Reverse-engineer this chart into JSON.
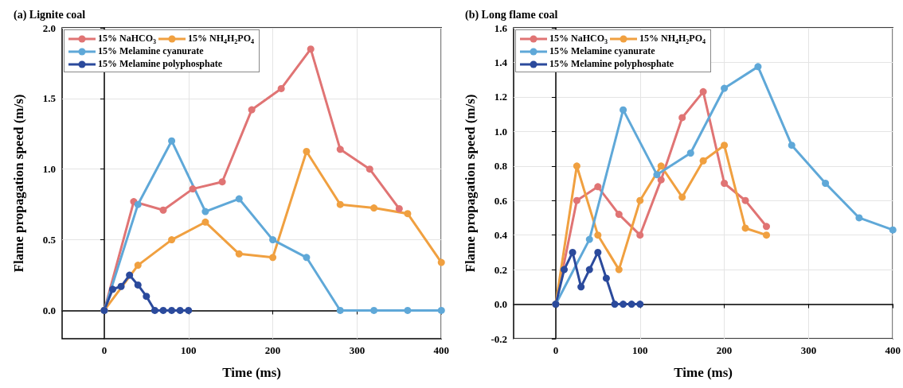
{
  "chart_data": [
    {
      "type": "line",
      "title": "(a) Lignite coal",
      "xlabel": "Time (ms)",
      "ylabel": "Flame propagation speed (m/s)",
      "xlim": [
        -50,
        400
      ],
      "xticks": [
        0,
        100,
        200,
        300,
        400
      ],
      "ylim": [
        -0.2,
        2.0
      ],
      "yticks": [
        {
          "value": 0,
          "label": "0.0"
        },
        0.5,
        {
          "value": 1,
          "label": "1.0"
        },
        1.5,
        {
          "value": 2,
          "label": "2.0"
        }
      ],
      "grid": true,
      "legend": "top left",
      "marker": "circle",
      "line_style": "solid",
      "series": [
        {
          "name": "15% NaHCO$_{3}$",
          "color": "#e07474",
          "x": [
            0,
            35,
            70,
            105,
            140,
            175,
            210,
            245,
            280,
            315,
            350
          ],
          "values": [
            0,
            0.77,
            0.71,
            0.86,
            0.91,
            1.42,
            1.57,
            1.85,
            1.14,
            1.0,
            0.72
          ]
        },
        {
          "name": "15% NH$_{4}$H$_{2}$PO$_{4}$",
          "color": "#f0a040",
          "x": [
            0,
            40,
            80,
            120,
            160,
            200,
            240,
            280,
            320,
            360,
            400
          ],
          "values": [
            0,
            0.32,
            0.5,
            0.625,
            0.4,
            0.375,
            1.125,
            0.75,
            0.725,
            0.685,
            0.34
          ]
        },
        {
          "name": "15% Melamine cyanurate",
          "color": "#5fa8d8",
          "x": [
            0,
            40,
            80,
            120,
            160,
            200,
            240,
            280,
            320,
            360,
            400
          ],
          "values": [
            0,
            0.75,
            1.2,
            0.7,
            0.79,
            0.5,
            0.375,
            0,
            0,
            0,
            0
          ]
        },
        {
          "name": "15% Melamine polyphosphate",
          "color": "#2b4a9c",
          "x": [
            0,
            10,
            20,
            30,
            40,
            50,
            60,
            70,
            80,
            90,
            100
          ],
          "values": [
            0,
            0.15,
            0.17,
            0.25,
            0.18,
            0.1,
            0,
            0,
            0,
            0,
            0
          ]
        }
      ]
    },
    {
      "type": "line",
      "title": "(b) Long flame coal",
      "xlabel": "Time (ms)",
      "ylabel": "Flame propagation speed (m/s)",
      "xlim": [
        -50,
        400
      ],
      "xticks": [
        0,
        100,
        200,
        300,
        400
      ],
      "ylim": [
        -0.2,
        1.6
      ],
      "yticks": [
        -0.2,
        {
          "value": 0,
          "label": "0.0"
        },
        0.2,
        0.4,
        0.6,
        0.8,
        {
          "value": 1,
          "label": "1.0"
        },
        1.2,
        1.4,
        1.6
      ],
      "grid": true,
      "legend": "top left",
      "marker": "circle",
      "line_style": "solid",
      "series": [
        {
          "name": "15% NaHCO$_{3}$",
          "color": "#e07474",
          "x": [
            0,
            25,
            50,
            75,
            100,
            125,
            150,
            175,
            200,
            225,
            250
          ],
          "values": [
            0,
            0.6,
            0.68,
            0.52,
            0.4,
            0.72,
            1.08,
            1.23,
            0.7,
            0.6,
            0.45
          ]
        },
        {
          "name": "15% NH$_{4}$H$_{2}$PO$_{4}$",
          "color": "#f0a040",
          "x": [
            0,
            25,
            50,
            75,
            100,
            125,
            150,
            175,
            200,
            225,
            250
          ],
          "values": [
            0,
            0.8,
            0.4,
            0.2,
            0.6,
            0.8,
            0.62,
            0.83,
            0.92,
            0.44,
            0.4
          ]
        },
        {
          "name": "15% Melamine cyanurate",
          "color": "#5fa8d8",
          "x": [
            0,
            40,
            80,
            120,
            160,
            200,
            240,
            280,
            320,
            360,
            400
          ],
          "values": [
            0,
            0.375,
            1.125,
            0.75,
            0.875,
            1.25,
            1.375,
            0.92,
            0.7,
            0.5,
            0.43
          ]
        },
        {
          "name": "15% Melamine polyphosphate",
          "color": "#2b4a9c",
          "x": [
            0,
            10,
            20,
            30,
            40,
            50,
            60,
            70,
            80,
            90,
            100
          ],
          "values": [
            0,
            0.2,
            0.3,
            0.1,
            0.2,
            0.3,
            0.15,
            0,
            0,
            0,
            0
          ]
        }
      ]
    }
  ]
}
